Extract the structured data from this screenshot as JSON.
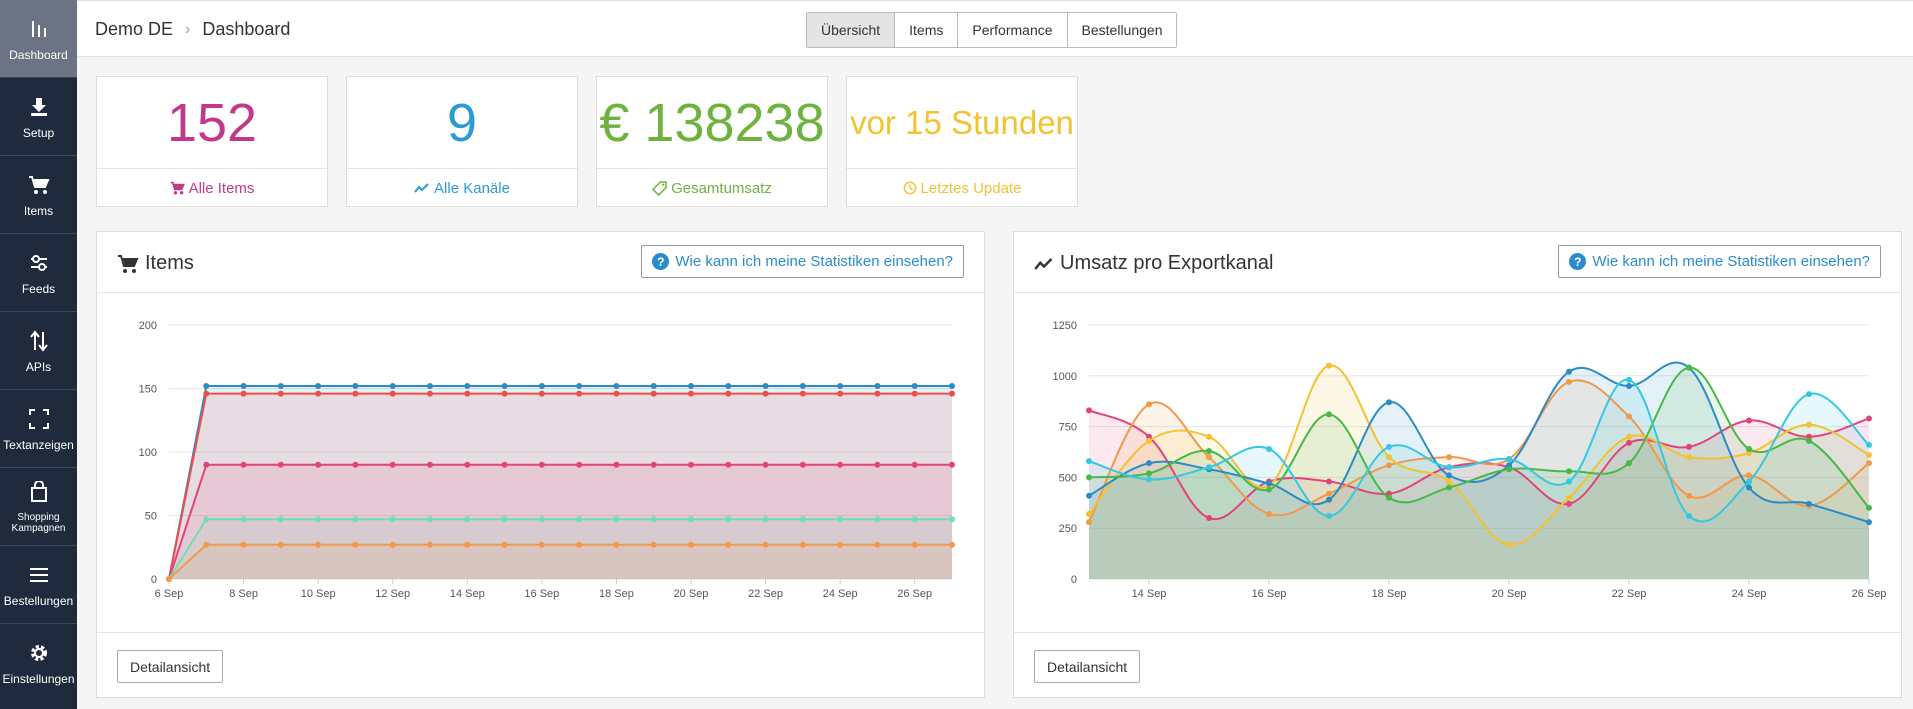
{
  "sidebar": {
    "items": [
      {
        "label": "Dashboard",
        "icon": "bar-chart-icon"
      },
      {
        "label": "Setup",
        "icon": "download-icon"
      },
      {
        "label": "Items",
        "icon": "cart-icon"
      },
      {
        "label": "Feeds",
        "icon": "sliders-icon"
      },
      {
        "label": "APIs",
        "icon": "arrows-updown-icon"
      },
      {
        "label": "Textanzeigen",
        "icon": "expand-icon"
      },
      {
        "label": "Shopping Kampagnen",
        "icon": "shopping-bag-icon"
      },
      {
        "label": "Bestellungen",
        "icon": "list-icon"
      },
      {
        "label": "Einstellungen",
        "icon": "gear-icon"
      }
    ]
  },
  "header": {
    "breadcrumb_root": "Demo DE",
    "breadcrumb_current": "Dashboard",
    "tabs": [
      "Übersicht",
      "Items",
      "Performance",
      "Bestellungen"
    ],
    "active_tab": "Übersicht"
  },
  "stats": [
    {
      "value": "152",
      "label": "Alle Items",
      "color": "#c2398b",
      "icon": "cart-icon"
    },
    {
      "value": "9",
      "label": "Alle Kanäle",
      "color": "#2a9bd4",
      "icon": "trend-line-icon"
    },
    {
      "value": "€ 138238",
      "label": "Gesamtumsatz",
      "color": "#6cb33f",
      "icon": "tag-icon"
    },
    {
      "value": "vor 15 Stunden",
      "label": "Letztes Update",
      "color": "#f1c232",
      "icon": "clock-icon"
    }
  ],
  "panels": {
    "help_label": "Wie kann ich meine Statistiken einsehen?",
    "detail_label": "Detailansicht",
    "items_title": "Items",
    "revenue_title": "Umsatz pro Exportkanal"
  },
  "chart_data": [
    {
      "type": "area",
      "x": [
        "6 Sep",
        "7 Sep",
        "8 Sep",
        "9 Sep",
        "10 Sep",
        "11 Sep",
        "12 Sep",
        "13 Sep",
        "14 Sep",
        "15 Sep",
        "16 Sep",
        "17 Sep",
        "18 Sep",
        "19 Sep",
        "20 Sep",
        "21 Sep",
        "22 Sep",
        "23 Sep",
        "24 Sep",
        "25 Sep",
        "26 Sep",
        "27 Sep"
      ],
      "xticks": [
        "6 Sep",
        "8 Sep",
        "10 Sep",
        "12 Sep",
        "14 Sep",
        "16 Sep",
        "18 Sep",
        "20 Sep",
        "22 Sep",
        "24 Sep",
        "26 Sep"
      ],
      "yticks": [
        0,
        50,
        100,
        150,
        200
      ],
      "ylim": [
        0,
        200
      ],
      "grid": true,
      "series": [
        {
          "color": "#2a8cc4",
          "values": [
            0,
            152,
            152,
            152,
            152,
            152,
            152,
            152,
            152,
            152,
            152,
            152,
            152,
            152,
            152,
            152,
            152,
            152,
            152,
            152,
            152,
            152
          ]
        },
        {
          "color": "#ee4d4d",
          "values": [
            0,
            146,
            146,
            146,
            146,
            146,
            146,
            146,
            146,
            146,
            146,
            146,
            146,
            146,
            146,
            146,
            146,
            146,
            146,
            146,
            146,
            146
          ]
        },
        {
          "color": "#e4437a",
          "values": [
            0,
            90,
            90,
            90,
            90,
            90,
            90,
            90,
            90,
            90,
            90,
            90,
            90,
            90,
            90,
            90,
            90,
            90,
            90,
            90,
            90,
            90
          ]
        },
        {
          "color": "#6fe0b0",
          "values": [
            0,
            47,
            47,
            47,
            47,
            47,
            47,
            47,
            47,
            47,
            47,
            47,
            47,
            47,
            47,
            47,
            47,
            47,
            47,
            47,
            47,
            47
          ]
        },
        {
          "color": "#f0994a",
          "values": [
            0,
            27,
            27,
            27,
            27,
            27,
            27,
            27,
            27,
            27,
            27,
            27,
            27,
            27,
            27,
            27,
            27,
            27,
            27,
            27,
            27,
            27
          ]
        }
      ]
    },
    {
      "type": "area",
      "x": [
        "13 Sep",
        "14 Sep",
        "15 Sep",
        "16 Sep",
        "17 Sep",
        "18 Sep",
        "19 Sep",
        "20 Sep",
        "21 Sep",
        "22 Sep",
        "23 Sep",
        "24 Sep",
        "25 Sep",
        "26 Sep"
      ],
      "x_offset": [
        0,
        0.5,
        1,
        1.5,
        2,
        2.5,
        3,
        3.5,
        4,
        4.5,
        5,
        5.5,
        6,
        6.5,
        7,
        7.5,
        8,
        8.5,
        9,
        9.5,
        10,
        10.5,
        11,
        11.5,
        12,
        12.5,
        13
      ],
      "xticks": [
        "14 Sep",
        "16 Sep",
        "18 Sep",
        "20 Sep",
        "22 Sep",
        "24 Sep",
        "26 Sep"
      ],
      "yticks": [
        0,
        250,
        500,
        750,
        1000,
        1250
      ],
      "ylim": [
        0,
        1250
      ],
      "grid": true,
      "series": [
        {
          "color": "#e4437a",
          "values": [
            830,
            700,
            300,
            480,
            480,
            420,
            550,
            550,
            370,
            670,
            650,
            780,
            700,
            790
          ]
        },
        {
          "color": "#f0994a",
          "values": [
            280,
            860,
            600,
            320,
            420,
            560,
            600,
            590,
            970,
            800,
            410,
            510,
            360,
            570
          ]
        },
        {
          "color": "#f1c232",
          "values": [
            320,
            680,
            700,
            460,
            1050,
            600,
            480,
            170,
            400,
            700,
            600,
            620,
            760,
            610
          ]
        },
        {
          "color": "#2a8cc4",
          "values": [
            410,
            570,
            540,
            470,
            390,
            870,
            510,
            560,
            1020,
            950,
            1040,
            450,
            370,
            280
          ]
        },
        {
          "color": "#46b946",
          "values": [
            500,
            520,
            630,
            440,
            810,
            400,
            450,
            540,
            530,
            570,
            1040,
            640,
            680,
            350
          ]
        },
        {
          "color": "#35c8e2",
          "values": [
            580,
            490,
            550,
            640,
            310,
            650,
            550,
            590,
            480,
            980,
            310,
            480,
            910,
            660
          ]
        }
      ]
    }
  ]
}
